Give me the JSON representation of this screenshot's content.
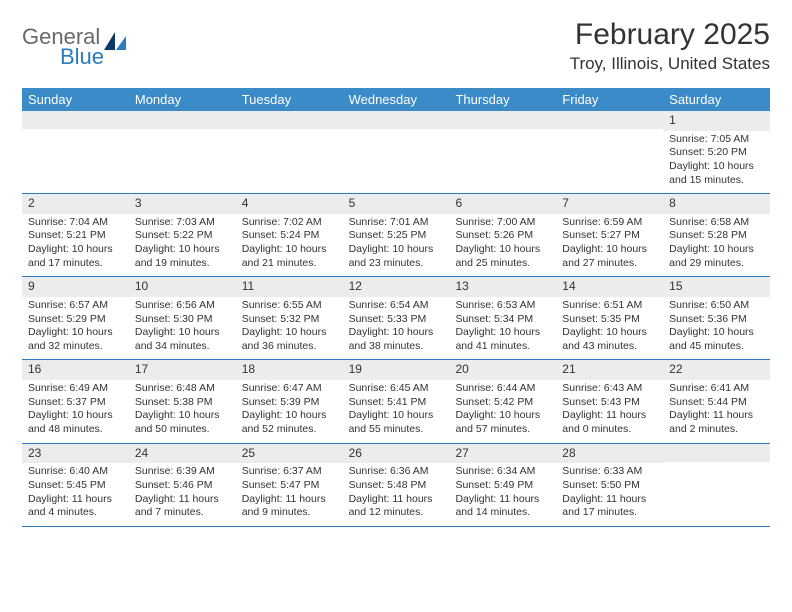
{
  "logo": {
    "text1": "General",
    "text2": "Blue"
  },
  "title": "February 2025",
  "subtitle": "Troy, Illinois, United States",
  "colors": {
    "header_bg": "#3b8bc8",
    "rule": "#2b7bbf",
    "daynum_bg": "#ececec",
    "text": "#333333",
    "logo_gray": "#6a6a6a",
    "logo_blue": "#2b7bbf"
  },
  "day_names": [
    "Sunday",
    "Monday",
    "Tuesday",
    "Wednesday",
    "Thursday",
    "Friday",
    "Saturday"
  ],
  "weeks": [
    [
      {
        "n": "",
        "sunrise": "",
        "sunset": "",
        "daylight": ""
      },
      {
        "n": "",
        "sunrise": "",
        "sunset": "",
        "daylight": ""
      },
      {
        "n": "",
        "sunrise": "",
        "sunset": "",
        "daylight": ""
      },
      {
        "n": "",
        "sunrise": "",
        "sunset": "",
        "daylight": ""
      },
      {
        "n": "",
        "sunrise": "",
        "sunset": "",
        "daylight": ""
      },
      {
        "n": "",
        "sunrise": "",
        "sunset": "",
        "daylight": ""
      },
      {
        "n": "1",
        "sunrise": "Sunrise: 7:05 AM",
        "sunset": "Sunset: 5:20 PM",
        "daylight": "Daylight: 10 hours and 15 minutes."
      }
    ],
    [
      {
        "n": "2",
        "sunrise": "Sunrise: 7:04 AM",
        "sunset": "Sunset: 5:21 PM",
        "daylight": "Daylight: 10 hours and 17 minutes."
      },
      {
        "n": "3",
        "sunrise": "Sunrise: 7:03 AM",
        "sunset": "Sunset: 5:22 PM",
        "daylight": "Daylight: 10 hours and 19 minutes."
      },
      {
        "n": "4",
        "sunrise": "Sunrise: 7:02 AM",
        "sunset": "Sunset: 5:24 PM",
        "daylight": "Daylight: 10 hours and 21 minutes."
      },
      {
        "n": "5",
        "sunrise": "Sunrise: 7:01 AM",
        "sunset": "Sunset: 5:25 PM",
        "daylight": "Daylight: 10 hours and 23 minutes."
      },
      {
        "n": "6",
        "sunrise": "Sunrise: 7:00 AM",
        "sunset": "Sunset: 5:26 PM",
        "daylight": "Daylight: 10 hours and 25 minutes."
      },
      {
        "n": "7",
        "sunrise": "Sunrise: 6:59 AM",
        "sunset": "Sunset: 5:27 PM",
        "daylight": "Daylight: 10 hours and 27 minutes."
      },
      {
        "n": "8",
        "sunrise": "Sunrise: 6:58 AM",
        "sunset": "Sunset: 5:28 PM",
        "daylight": "Daylight: 10 hours and 29 minutes."
      }
    ],
    [
      {
        "n": "9",
        "sunrise": "Sunrise: 6:57 AM",
        "sunset": "Sunset: 5:29 PM",
        "daylight": "Daylight: 10 hours and 32 minutes."
      },
      {
        "n": "10",
        "sunrise": "Sunrise: 6:56 AM",
        "sunset": "Sunset: 5:30 PM",
        "daylight": "Daylight: 10 hours and 34 minutes."
      },
      {
        "n": "11",
        "sunrise": "Sunrise: 6:55 AM",
        "sunset": "Sunset: 5:32 PM",
        "daylight": "Daylight: 10 hours and 36 minutes."
      },
      {
        "n": "12",
        "sunrise": "Sunrise: 6:54 AM",
        "sunset": "Sunset: 5:33 PM",
        "daylight": "Daylight: 10 hours and 38 minutes."
      },
      {
        "n": "13",
        "sunrise": "Sunrise: 6:53 AM",
        "sunset": "Sunset: 5:34 PM",
        "daylight": "Daylight: 10 hours and 41 minutes."
      },
      {
        "n": "14",
        "sunrise": "Sunrise: 6:51 AM",
        "sunset": "Sunset: 5:35 PM",
        "daylight": "Daylight: 10 hours and 43 minutes."
      },
      {
        "n": "15",
        "sunrise": "Sunrise: 6:50 AM",
        "sunset": "Sunset: 5:36 PM",
        "daylight": "Daylight: 10 hours and 45 minutes."
      }
    ],
    [
      {
        "n": "16",
        "sunrise": "Sunrise: 6:49 AM",
        "sunset": "Sunset: 5:37 PM",
        "daylight": "Daylight: 10 hours and 48 minutes."
      },
      {
        "n": "17",
        "sunrise": "Sunrise: 6:48 AM",
        "sunset": "Sunset: 5:38 PM",
        "daylight": "Daylight: 10 hours and 50 minutes."
      },
      {
        "n": "18",
        "sunrise": "Sunrise: 6:47 AM",
        "sunset": "Sunset: 5:39 PM",
        "daylight": "Daylight: 10 hours and 52 minutes."
      },
      {
        "n": "19",
        "sunrise": "Sunrise: 6:45 AM",
        "sunset": "Sunset: 5:41 PM",
        "daylight": "Daylight: 10 hours and 55 minutes."
      },
      {
        "n": "20",
        "sunrise": "Sunrise: 6:44 AM",
        "sunset": "Sunset: 5:42 PM",
        "daylight": "Daylight: 10 hours and 57 minutes."
      },
      {
        "n": "21",
        "sunrise": "Sunrise: 6:43 AM",
        "sunset": "Sunset: 5:43 PM",
        "daylight": "Daylight: 11 hours and 0 minutes."
      },
      {
        "n": "22",
        "sunrise": "Sunrise: 6:41 AM",
        "sunset": "Sunset: 5:44 PM",
        "daylight": "Daylight: 11 hours and 2 minutes."
      }
    ],
    [
      {
        "n": "23",
        "sunrise": "Sunrise: 6:40 AM",
        "sunset": "Sunset: 5:45 PM",
        "daylight": "Daylight: 11 hours and 4 minutes."
      },
      {
        "n": "24",
        "sunrise": "Sunrise: 6:39 AM",
        "sunset": "Sunset: 5:46 PM",
        "daylight": "Daylight: 11 hours and 7 minutes."
      },
      {
        "n": "25",
        "sunrise": "Sunrise: 6:37 AM",
        "sunset": "Sunset: 5:47 PM",
        "daylight": "Daylight: 11 hours and 9 minutes."
      },
      {
        "n": "26",
        "sunrise": "Sunrise: 6:36 AM",
        "sunset": "Sunset: 5:48 PM",
        "daylight": "Daylight: 11 hours and 12 minutes."
      },
      {
        "n": "27",
        "sunrise": "Sunrise: 6:34 AM",
        "sunset": "Sunset: 5:49 PM",
        "daylight": "Daylight: 11 hours and 14 minutes."
      },
      {
        "n": "28",
        "sunrise": "Sunrise: 6:33 AM",
        "sunset": "Sunset: 5:50 PM",
        "daylight": "Daylight: 11 hours and 17 minutes."
      },
      {
        "n": "",
        "sunrise": "",
        "sunset": "",
        "daylight": ""
      }
    ]
  ]
}
